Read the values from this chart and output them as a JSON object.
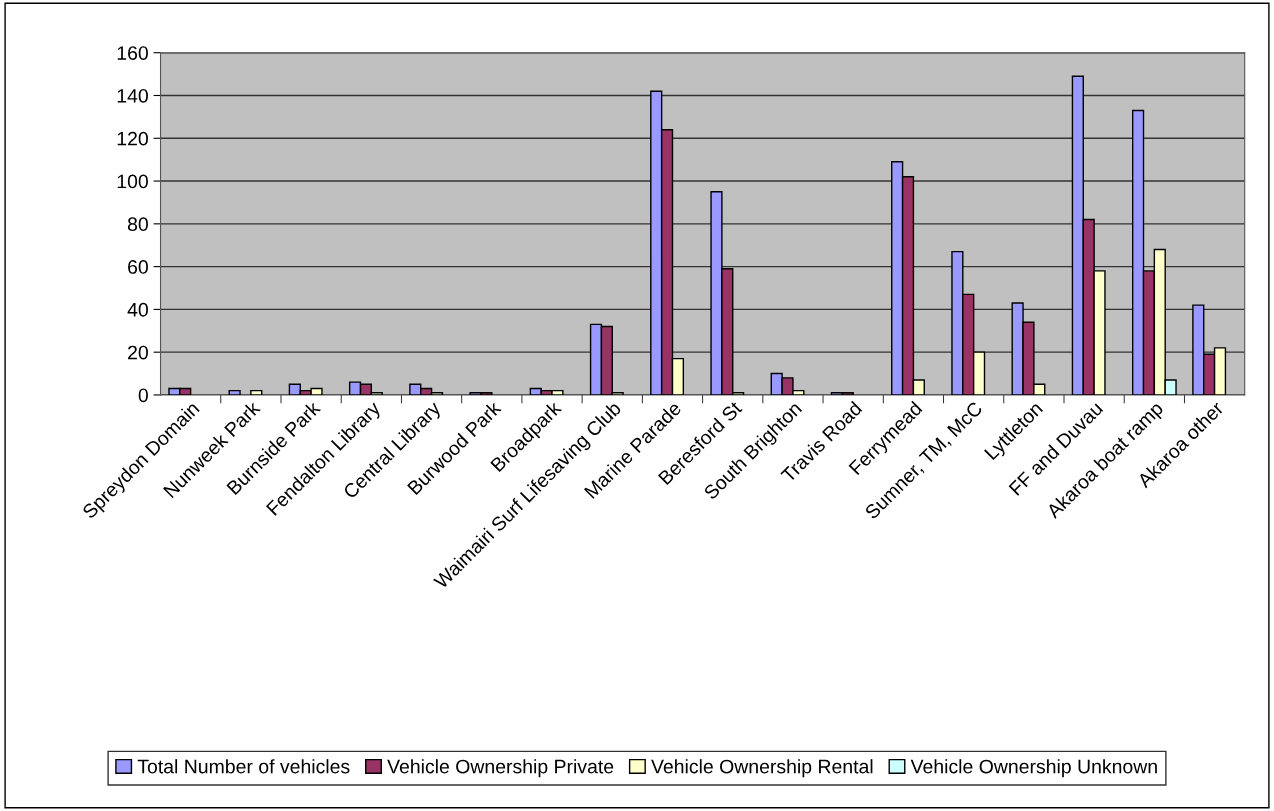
{
  "chart_data": {
    "type": "bar",
    "categories": [
      "Spreydon Domain",
      "Nunweek Park",
      "Burnside Park",
      "Fendalton Library",
      "Central Library",
      "Burwood Park",
      "Broadpark",
      "Waimairi Surf Lifesaving Club",
      "Marine Parade",
      "Beresford St",
      "South Brighton",
      "Travis Road",
      "Ferrymead",
      "Sumner, TM, McC",
      "Lyttleton",
      "FF and Duvau",
      "Akaroa boat ramp",
      "Akaroa other"
    ],
    "series": [
      {
        "name": "Total Number of vehicles",
        "color": "#9999ff",
        "values": [
          3,
          2,
          5,
          6,
          5,
          1,
          3,
          33,
          142,
          95,
          10,
          1,
          109,
          67,
          43,
          149,
          133,
          42
        ]
      },
      {
        "name": "Vehicle Ownership Private",
        "color": "#993366",
        "values": [
          3,
          0,
          2,
          5,
          3,
          1,
          2,
          32,
          124,
          59,
          8,
          1,
          102,
          47,
          34,
          82,
          58,
          19
        ]
      },
      {
        "name": "Vehicle Ownership Rental",
        "color": "#ffffcc",
        "values": [
          0,
          2,
          3,
          1,
          1,
          0,
          2,
          1,
          17,
          1,
          2,
          0,
          7,
          20,
          5,
          58,
          68,
          22
        ]
      },
      {
        "name": "Vehicle Ownership Unknown",
        "color": "#ccffff",
        "values": [
          0,
          0,
          0,
          0,
          0,
          0,
          0,
          0,
          0,
          0,
          0,
          0,
          0,
          0,
          0,
          0,
          7,
          0
        ]
      }
    ],
    "ylim": [
      0,
      160
    ],
    "yticks": [
      0,
      20,
      40,
      60,
      80,
      100,
      120,
      140,
      160
    ],
    "grid": "y",
    "legend": "bottom"
  }
}
